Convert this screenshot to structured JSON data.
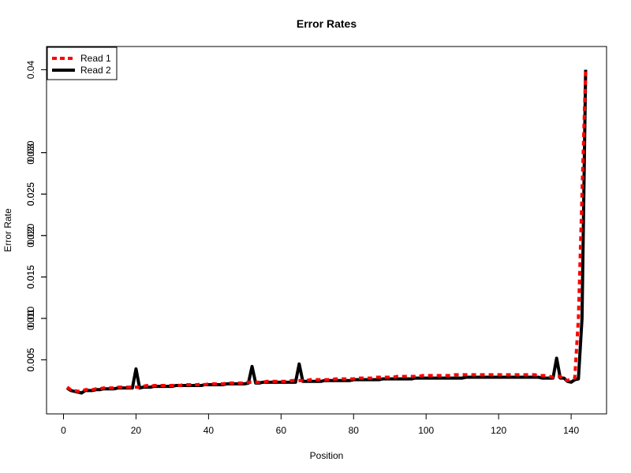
{
  "chart_data": {
    "type": "line",
    "title": "Error Rates",
    "xlabel": "Position",
    "ylabel": "Error Rate",
    "xlim": [
      1,
      144
    ],
    "ylim": [
      0.0,
      0.041
    ],
    "x_ticks": [
      0,
      20,
      40,
      60,
      80,
      100,
      120,
      140
    ],
    "y_ticks_left": [
      0.005,
      0.01,
      0.015,
      0.02,
      0.025,
      0.03
    ],
    "y_ticks_right": [
      0.005,
      0.01,
      0.015,
      0.02,
      0.025,
      0.03,
      0.04
    ],
    "y_tick_labels_left": [
      "0.005",
      "0.010",
      "0.015",
      "0.020",
      "0.025",
      "0.030"
    ],
    "y_tick_labels_right": [
      "0.005",
      "0.01",
      "0.015",
      "0.02",
      "0.025",
      "0.03",
      "0.04"
    ],
    "grid": false,
    "legend_position": "top-left",
    "series": [
      {
        "name": "Read 1",
        "color": "#ff0000",
        "style": "dashed",
        "x": [
          1,
          2,
          3,
          4,
          5,
          6,
          7,
          8,
          9,
          10,
          11,
          12,
          13,
          14,
          15,
          16,
          17,
          18,
          19,
          20,
          21,
          22,
          23,
          24,
          25,
          26,
          27,
          28,
          29,
          30,
          31,
          32,
          33,
          34,
          35,
          36,
          37,
          38,
          39,
          40,
          41,
          42,
          43,
          44,
          45,
          46,
          47,
          48,
          49,
          50,
          51,
          52,
          53,
          54,
          55,
          56,
          57,
          58,
          59,
          60,
          61,
          62,
          63,
          64,
          65,
          66,
          67,
          68,
          69,
          70,
          71,
          72,
          73,
          74,
          75,
          76,
          77,
          78,
          79,
          80,
          81,
          82,
          83,
          84,
          85,
          86,
          87,
          88,
          89,
          90,
          91,
          92,
          93,
          94,
          95,
          96,
          97,
          98,
          99,
          100,
          101,
          102,
          103,
          104,
          105,
          106,
          107,
          108,
          109,
          110,
          111,
          112,
          113,
          114,
          115,
          116,
          117,
          118,
          119,
          120,
          121,
          122,
          123,
          124,
          125,
          126,
          127,
          128,
          129,
          130,
          131,
          132,
          133,
          134,
          135,
          136,
          137,
          138,
          139,
          140,
          141,
          142,
          143,
          144
        ],
        "values": [
          0.0017,
          0.0014,
          0.0013,
          0.0012,
          0.0012,
          0.0014,
          0.0014,
          0.0014,
          0.0015,
          0.0015,
          0.0016,
          0.0016,
          0.0016,
          0.0016,
          0.0017,
          0.0017,
          0.0017,
          0.0017,
          0.0017,
          0.0017,
          0.0017,
          0.0018,
          0.0019,
          0.0018,
          0.0019,
          0.0019,
          0.0019,
          0.0019,
          0.0019,
          0.0019,
          0.002,
          0.0019,
          0.002,
          0.002,
          0.002,
          0.002,
          0.002,
          0.0021,
          0.002,
          0.0021,
          0.0021,
          0.0021,
          0.0021,
          0.0021,
          0.0022,
          0.0022,
          0.0022,
          0.0022,
          0.0022,
          0.0022,
          0.0023,
          0.0023,
          0.0023,
          0.0023,
          0.0023,
          0.0024,
          0.0024,
          0.0024,
          0.0024,
          0.0024,
          0.0024,
          0.0024,
          0.0025,
          0.0025,
          0.0025,
          0.0025,
          0.0025,
          0.0026,
          0.0026,
          0.0026,
          0.0026,
          0.0026,
          0.0026,
          0.0026,
          0.0027,
          0.0027,
          0.0027,
          0.0027,
          0.0027,
          0.0027,
          0.0028,
          0.0028,
          0.0028,
          0.0028,
          0.0028,
          0.0029,
          0.0029,
          0.0029,
          0.0029,
          0.0029,
          0.0029,
          0.003,
          0.003,
          0.003,
          0.003,
          0.003,
          0.003,
          0.003,
          0.0031,
          0.0031,
          0.0031,
          0.0031,
          0.0031,
          0.0031,
          0.0031,
          0.0031,
          0.0031,
          0.0032,
          0.0032,
          0.0032,
          0.0032,
          0.0032,
          0.0032,
          0.0032,
          0.0032,
          0.0032,
          0.0032,
          0.0032,
          0.0032,
          0.0032,
          0.0032,
          0.0032,
          0.0032,
          0.0032,
          0.0032,
          0.0032,
          0.0032,
          0.0032,
          0.0032,
          0.0032,
          0.0031,
          0.0031,
          0.0031,
          0.003,
          0.0029,
          0.003,
          0.003,
          0.0026,
          0.0025,
          0.0027,
          0.0028,
          0.01,
          0.025,
          0.04
        ]
      },
      {
        "name": "Read 2",
        "color": "#000000",
        "style": "solid",
        "x": [
          1,
          2,
          3,
          4,
          5,
          6,
          7,
          8,
          9,
          10,
          11,
          12,
          13,
          14,
          15,
          16,
          17,
          18,
          19,
          20,
          21,
          22,
          23,
          24,
          25,
          26,
          27,
          28,
          29,
          30,
          31,
          32,
          33,
          34,
          35,
          36,
          37,
          38,
          39,
          40,
          41,
          42,
          43,
          44,
          45,
          46,
          47,
          48,
          49,
          50,
          51,
          52,
          53,
          54,
          55,
          56,
          57,
          58,
          59,
          60,
          61,
          62,
          63,
          64,
          65,
          66,
          67,
          68,
          69,
          70,
          71,
          72,
          73,
          74,
          75,
          76,
          77,
          78,
          79,
          80,
          81,
          82,
          83,
          84,
          85,
          86,
          87,
          88,
          89,
          90,
          91,
          92,
          93,
          94,
          95,
          96,
          97,
          98,
          99,
          100,
          101,
          102,
          103,
          104,
          105,
          106,
          107,
          108,
          109,
          110,
          111,
          112,
          113,
          114,
          115,
          116,
          117,
          118,
          119,
          120,
          121,
          122,
          123,
          124,
          125,
          126,
          127,
          128,
          129,
          130,
          131,
          132,
          133,
          134,
          135,
          136,
          137,
          138,
          139,
          140,
          141,
          142,
          143,
          144
        ],
        "values": [
          0.0016,
          0.0013,
          0.0012,
          0.0011,
          0.001,
          0.0013,
          0.0013,
          0.0013,
          0.0014,
          0.0014,
          0.0015,
          0.0015,
          0.0015,
          0.0015,
          0.0016,
          0.0016,
          0.0016,
          0.0016,
          0.0016,
          0.0039,
          0.0016,
          0.0017,
          0.0017,
          0.0017,
          0.0018,
          0.0018,
          0.0018,
          0.0018,
          0.0018,
          0.0018,
          0.0019,
          0.0019,
          0.0019,
          0.0019,
          0.0019,
          0.0019,
          0.0019,
          0.0019,
          0.002,
          0.002,
          0.002,
          0.002,
          0.002,
          0.002,
          0.0021,
          0.0021,
          0.0021,
          0.0021,
          0.0021,
          0.0021,
          0.0022,
          0.0042,
          0.0022,
          0.0022,
          0.0023,
          0.0023,
          0.0023,
          0.0023,
          0.0023,
          0.0023,
          0.0023,
          0.0023,
          0.0023,
          0.0023,
          0.0045,
          0.0024,
          0.0024,
          0.0024,
          0.0024,
          0.0024,
          0.0024,
          0.0025,
          0.0025,
          0.0025,
          0.0025,
          0.0025,
          0.0025,
          0.0025,
          0.0025,
          0.0026,
          0.0026,
          0.0026,
          0.0026,
          0.0026,
          0.0026,
          0.0026,
          0.0026,
          0.0027,
          0.0027,
          0.0027,
          0.0027,
          0.0027,
          0.0027,
          0.0027,
          0.0027,
          0.0027,
          0.0028,
          0.0028,
          0.0028,
          0.0028,
          0.0028,
          0.0028,
          0.0028,
          0.0028,
          0.0028,
          0.0028,
          0.0028,
          0.0028,
          0.0028,
          0.0028,
          0.0029,
          0.0029,
          0.0029,
          0.0029,
          0.0029,
          0.0029,
          0.0029,
          0.0029,
          0.0029,
          0.0029,
          0.0029,
          0.0029,
          0.0029,
          0.0029,
          0.0029,
          0.0029,
          0.0029,
          0.0029,
          0.0029,
          0.0029,
          0.0029,
          0.0028,
          0.0028,
          0.0028,
          0.0028,
          0.0052,
          0.0028,
          0.0028,
          0.0024,
          0.0023,
          0.0026,
          0.0027,
          0.01,
          0.04
        ]
      }
    ]
  }
}
